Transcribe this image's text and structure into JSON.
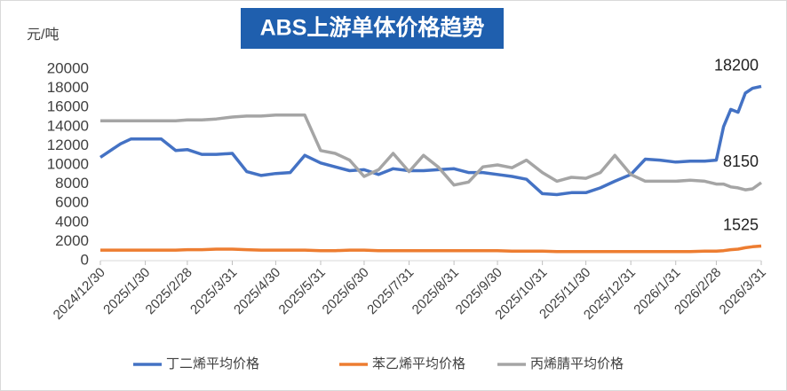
{
  "chart_data": {
    "type": "line",
    "title": "ABS上游单体价格趋势",
    "y_label": "元/吨",
    "x": [
      "2024/12/30",
      "2025/1/6",
      "2025/1/13",
      "2025/1/20",
      "2025/1/30",
      "2025/2/10",
      "2025/2/20",
      "2025/2/28",
      "2025/3/10",
      "2025/3/20",
      "2025/3/31",
      "2025/4/10",
      "2025/4/20",
      "2025/4/30",
      "2025/5/10",
      "2025/5/20",
      "2025/5/31",
      "2025/6/10",
      "2025/6/20",
      "2025/6/30",
      "2025/7/10",
      "2025/7/20",
      "2025/7/31",
      "2025/8/10",
      "2025/8/20",
      "2025/8/31",
      "2025/9/10",
      "2025/9/20",
      "2025/9/30",
      "2025/10/10",
      "2025/10/20",
      "2025/10/31",
      "2025/11/10",
      "2025/11/20",
      "2025/11/30",
      "2025/12/10",
      "2025/12/20",
      "2025/12/31",
      "2026/1/10",
      "2026/1/20",
      "2026/1/31",
      "2026/2/10",
      "2026/2/20",
      "2026/2/28",
      "2026/3/5",
      "2026/3/10",
      "2026/3/15",
      "2026/3/20",
      "2026/3/25",
      "2026/3/31"
    ],
    "series": [
      {
        "name": "丁二烯平均价格",
        "color": "#4472c4",
        "values": [
          10800,
          11500,
          12200,
          12700,
          12700,
          12700,
          11500,
          11600,
          11100,
          11100,
          11200,
          9300,
          8900,
          9100,
          9200,
          11000,
          10200,
          9800,
          9400,
          9500,
          9000,
          9600,
          9400,
          9400,
          9500,
          9600,
          9200,
          9200,
          9000,
          8800,
          8500,
          7000,
          6900,
          7100,
          7100,
          7600,
          8300,
          9000,
          10600,
          10500,
          10300,
          10400,
          10400,
          10500,
          14000,
          15800,
          15500,
          17500,
          18000,
          18200
        ]
      },
      {
        "name": "苯乙烯平均价格",
        "color": "#ed7d31",
        "values": [
          1100,
          1100,
          1100,
          1100,
          1100,
          1100,
          1100,
          1150,
          1150,
          1200,
          1200,
          1150,
          1100,
          1100,
          1100,
          1100,
          1050,
          1050,
          1100,
          1100,
          1050,
          1050,
          1050,
          1050,
          1050,
          1050,
          1050,
          1050,
          1050,
          1000,
          1000,
          1000,
          950,
          950,
          950,
          950,
          950,
          950,
          950,
          950,
          950,
          950,
          1000,
          1000,
          1050,
          1150,
          1200,
          1350,
          1450,
          1525
        ]
      },
      {
        "name": "丙烯腈平均价格",
        "color": "#a5a5a5",
        "values": [
          14600,
          14600,
          14600,
          14600,
          14600,
          14600,
          14600,
          14700,
          14700,
          14800,
          15000,
          15100,
          15100,
          15200,
          15200,
          15200,
          11500,
          11200,
          10500,
          8800,
          9500,
          11200,
          9300,
          11000,
          9800,
          7900,
          8200,
          9800,
          10000,
          9700,
          10500,
          9200,
          8300,
          8700,
          8600,
          9200,
          11000,
          9000,
          8300,
          8300,
          8300,
          8400,
          8300,
          8000,
          8000,
          7700,
          7600,
          7400,
          7500,
          8150
        ]
      }
    ],
    "xlim": [
      "2024/12/30",
      "2026/3/31"
    ],
    "xticks": [
      "2024/12/30",
      "2025/1/30",
      "2025/2/28",
      "2025/3/31",
      "2025/4/30",
      "2025/5/31",
      "2025/6/30",
      "2025/7/31",
      "2025/8/31",
      "2025/9/30",
      "2025/10/31",
      "2025/11/30",
      "2025/12/31",
      "2026/1/31",
      "2026/2/28",
      "2026/3/31"
    ],
    "ylim": [
      0,
      20000
    ],
    "yticks": [
      0,
      2000,
      4000,
      6000,
      8000,
      10000,
      12000,
      14000,
      16000,
      18000,
      20000
    ],
    "grid": false,
    "legend": "bottom"
  }
}
